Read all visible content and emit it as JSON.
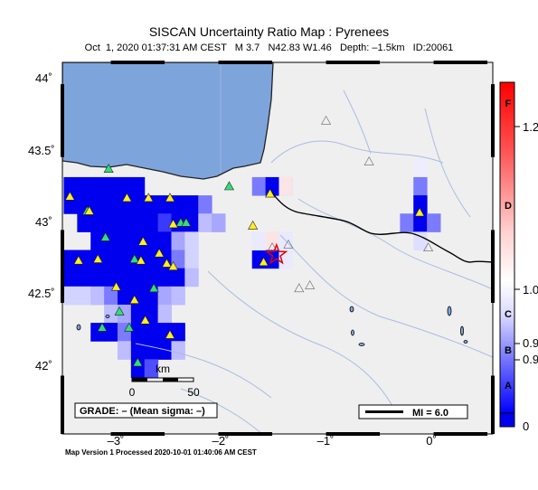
{
  "map": {
    "title": "SISCAN Uncertainty Ratio Map : Pyrenees",
    "subtitle": "Oct  1, 2020 01:37:31 AM CEST   M 3.7   N42.83 W1.46   Depth: –1.5km   ID:20061",
    "footer": "Map Version 1 Processed 2020-10-01 01:40:06 AM CEST",
    "lon_ticks": [
      "–3˚",
      "–2˚",
      "–1˚",
      "0˚"
    ],
    "lat_ticks": [
      "44˚",
      "43.5˚",
      "43˚",
      "42.5˚",
      "42˚"
    ],
    "lon_range": [
      -3.45,
      0.55
    ],
    "lat_range": [
      41.6,
      44.15
    ],
    "epicenter": {
      "lon": -1.46,
      "lat": 42.83
    },
    "grade_box": "GRADE: – (Mean sigma: –)",
    "mi_box": "MI = 6.0",
    "scale_bar": {
      "unit": "km",
      "labels": [
        "0",
        "50"
      ]
    },
    "colors": {
      "ocean": "#7ea4dc",
      "land": "#efefef",
      "blue": "#0000ee",
      "red": "#ff0000"
    }
  },
  "colorbar": {
    "grades": [
      "F",
      "D",
      "C",
      "B",
      "A"
    ],
    "values": [
      "1.2",
      "1.0",
      "0.9",
      "0.9",
      "0"
    ]
  },
  "stations_grid": {
    "cell_deg": 0.125,
    "note": "cells listed as [lon, lat, intensity 0-1]"
  }
}
